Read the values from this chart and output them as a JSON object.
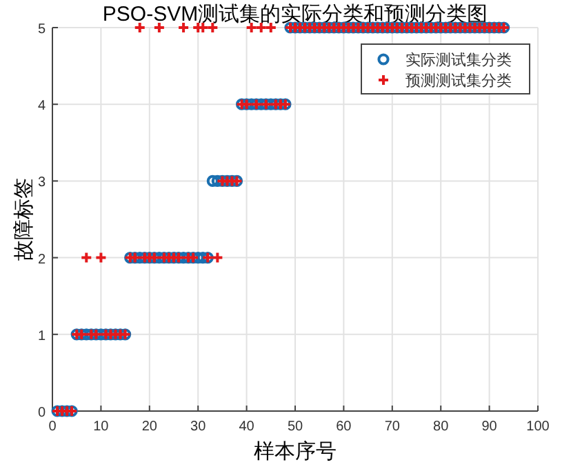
{
  "chart_data": {
    "type": "scatter",
    "title": "PSO-SVM测试集的实际分类和预测分类图",
    "xlabel": "样本序号",
    "ylabel": "故障标签",
    "xlim": [
      0,
      100
    ],
    "xticks": [
      0,
      10,
      20,
      30,
      40,
      50,
      60,
      70,
      80,
      90,
      100
    ],
    "ylim": [
      0,
      5
    ],
    "yticks": [
      0,
      1,
      2,
      3,
      4,
      5
    ],
    "grid": true,
    "legend": "top right",
    "x": [
      1,
      2,
      3,
      4,
      5,
      6,
      7,
      8,
      9,
      10,
      11,
      12,
      13,
      14,
      15,
      16,
      17,
      18,
      19,
      20,
      21,
      22,
      23,
      24,
      25,
      26,
      27,
      28,
      29,
      30,
      31,
      32,
      33,
      34,
      35,
      36,
      37,
      38,
      39,
      40,
      41,
      42,
      43,
      44,
      45,
      46,
      47,
      48,
      49,
      50,
      51,
      52,
      53,
      54,
      55,
      56,
      57,
      58,
      59,
      60,
      61,
      62,
      63,
      64,
      65,
      66,
      67,
      68,
      69,
      70,
      71,
      72,
      73,
      74,
      75,
      76,
      77,
      78,
      79,
      80,
      81,
      82,
      83,
      84,
      85,
      86,
      87,
      88,
      89,
      90,
      91,
      92,
      93
    ],
    "series": [
      {
        "name": "实际测试集分类",
        "color": "#1a6fb0",
        "marker": "circle",
        "values": [
          0,
          0,
          0,
          0,
          1,
          1,
          1,
          1,
          1,
          1,
          1,
          1,
          1,
          1,
          1,
          2,
          2,
          2,
          2,
          2,
          2,
          2,
          2,
          2,
          2,
          2,
          2,
          2,
          2,
          2,
          2,
          2,
          3,
          3,
          3,
          3,
          3,
          3,
          4,
          4,
          4,
          4,
          4,
          4,
          4,
          4,
          4,
          4,
          5,
          5,
          5,
          5,
          5,
          5,
          5,
          5,
          5,
          5,
          5,
          5,
          5,
          5,
          5,
          5,
          5,
          5,
          5,
          5,
          5,
          5,
          5,
          5,
          5,
          5,
          5,
          5,
          5,
          5,
          5,
          5,
          5,
          5,
          5,
          5,
          5,
          5,
          5,
          5,
          5,
          5,
          5,
          5,
          5
        ]
      },
      {
        "name": "预测测试集分类",
        "color": "#e3191c",
        "marker": "cross",
        "values": [
          0,
          0,
          0,
          0,
          1,
          1,
          2,
          1,
          1,
          2,
          1,
          1,
          1,
          1,
          1,
          2,
          2,
          5,
          2,
          2,
          2,
          5,
          2,
          2,
          2,
          2,
          5,
          2,
          2,
          5,
          5,
          2,
          5,
          2,
          3,
          3,
          3,
          3,
          4,
          4,
          5,
          4,
          5,
          4,
          5,
          4,
          4,
          4,
          5,
          5,
          5,
          5,
          5,
          5,
          5,
          5,
          5,
          5,
          5,
          5,
          5,
          5,
          5,
          5,
          5,
          5,
          5,
          5,
          5,
          5,
          5,
          5,
          5,
          5,
          5,
          5,
          5,
          5,
          5,
          5,
          5,
          5,
          5,
          5,
          5,
          5,
          5,
          5,
          5,
          5,
          5,
          5,
          5
        ]
      }
    ]
  }
}
